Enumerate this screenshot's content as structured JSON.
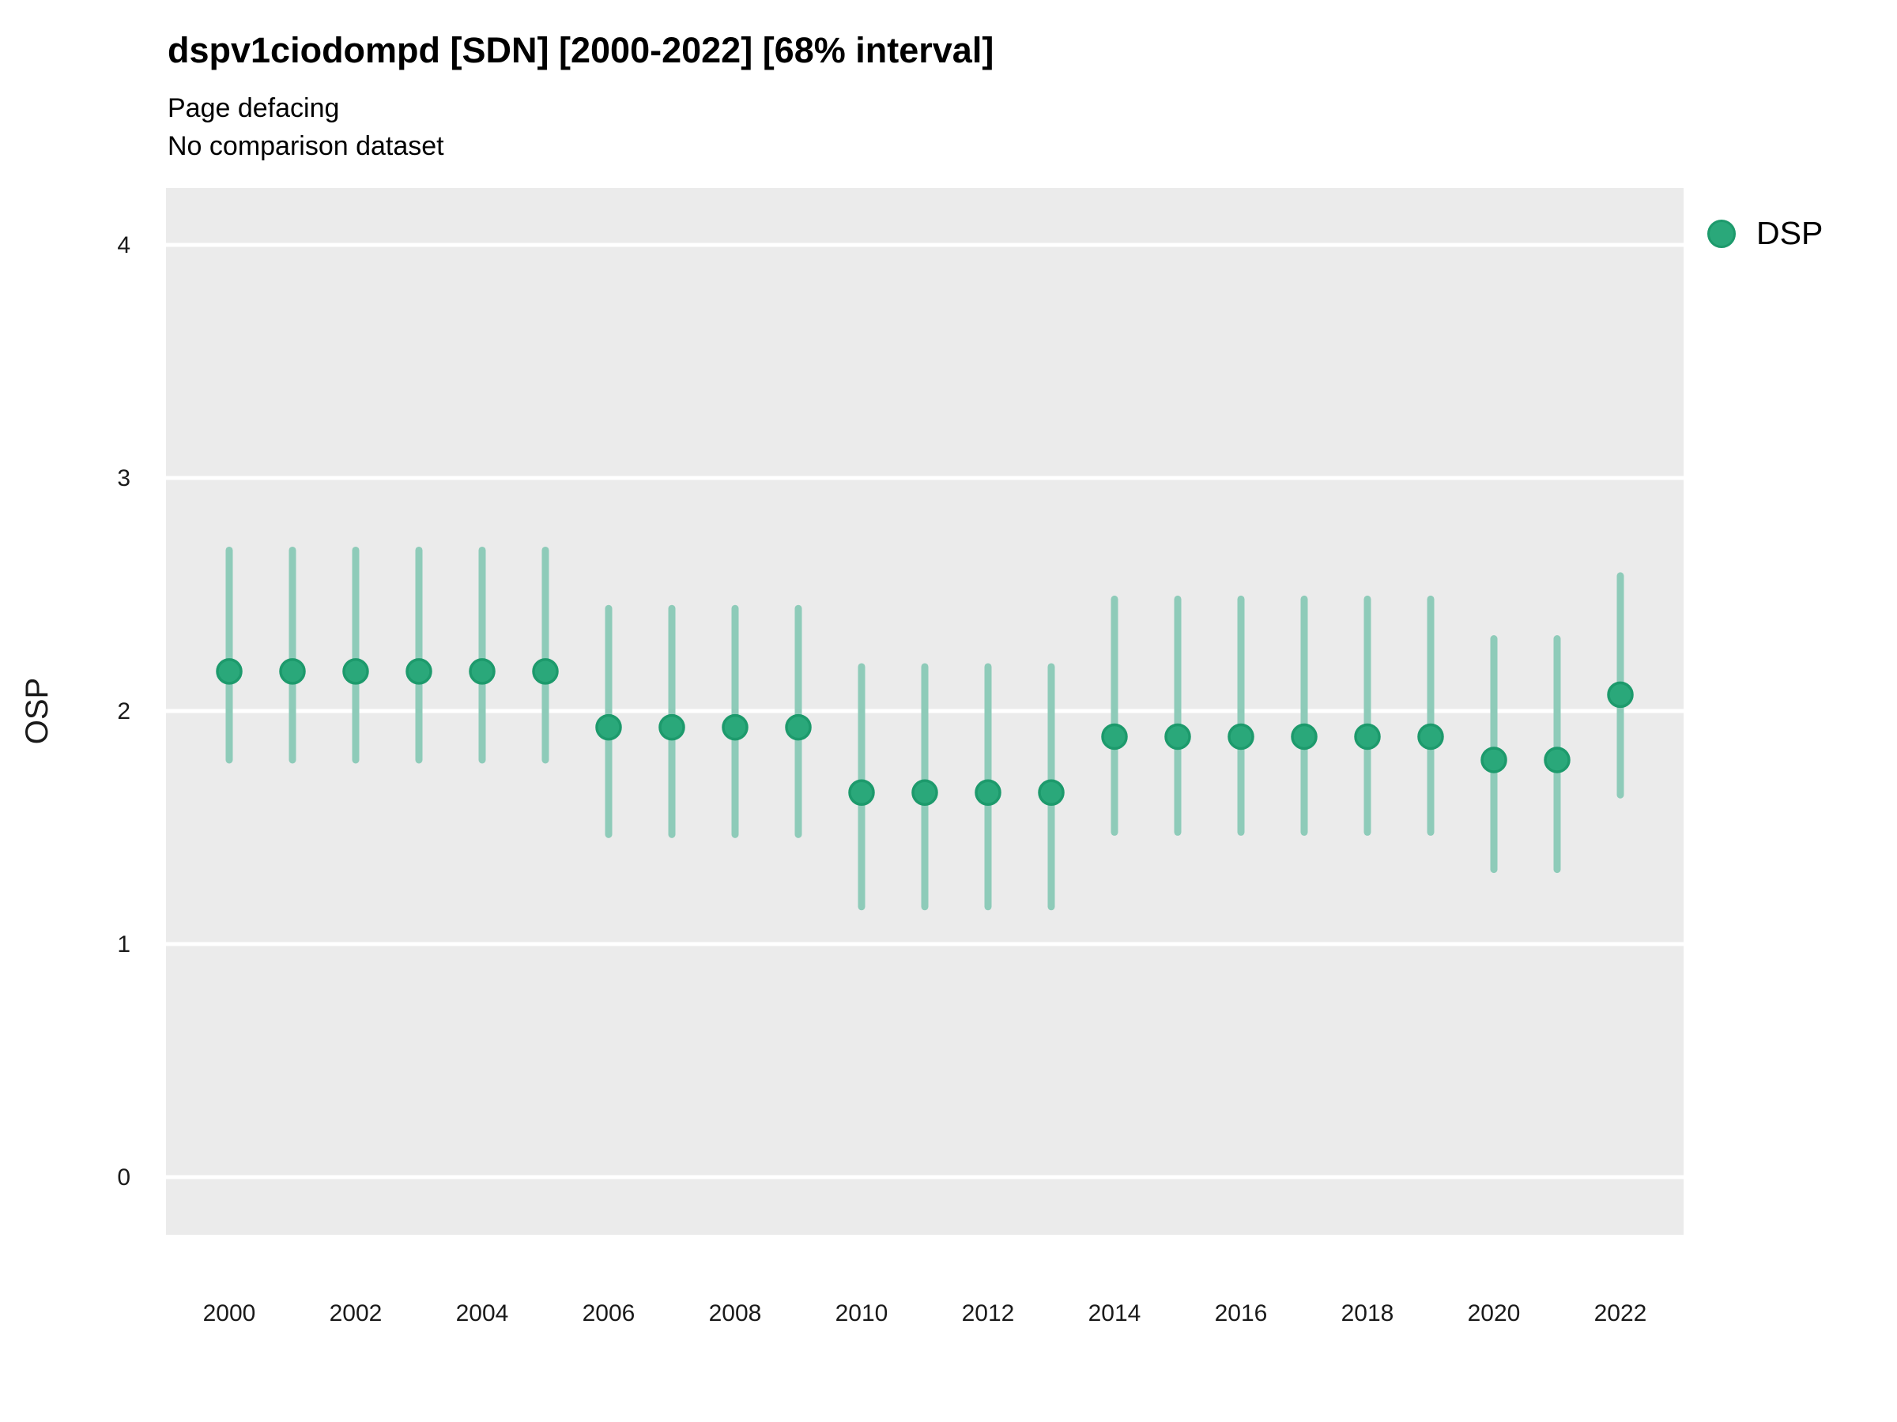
{
  "title": "dspv1ciodompd [SDN] [2000-2022] [68% interval]",
  "subtitle": "Page defacing",
  "note": "No comparison dataset",
  "legend": {
    "items": [
      {
        "label": "DSP",
        "color": "#2aa87a",
        "stroke": "#1d9a6c"
      }
    ]
  },
  "colors": {
    "panel_background": "#ebebeb",
    "gridline": "#ffffff",
    "point_fill": "#2aa87a",
    "point_stroke": "#1d9a6c",
    "interval_bar": "#8ecbb9",
    "text": "#1a1a1a"
  },
  "chart_data": {
    "type": "scatter",
    "title": "dspv1ciodompd [SDN] [2000-2022] [68% interval]",
    "subtitle": "Page defacing",
    "note": "No comparison dataset",
    "interval": "68%",
    "xlabel": "",
    "ylabel": "OSP",
    "legend_position": "right-top",
    "grid": "horizontal-major-only",
    "ylim": [
      -0.25,
      4.25
    ],
    "xlim": [
      1999,
      2023
    ],
    "yticks": [
      0,
      1,
      2,
      3,
      4
    ],
    "xticks": [
      2000,
      2002,
      2004,
      2006,
      2008,
      2010,
      2012,
      2014,
      2016,
      2018,
      2020,
      2022
    ],
    "series": [
      {
        "name": "DSP",
        "x": [
          2000,
          2001,
          2002,
          2003,
          2004,
          2005,
          2006,
          2007,
          2008,
          2009,
          2010,
          2011,
          2012,
          2013,
          2014,
          2015,
          2016,
          2017,
          2018,
          2019,
          2020,
          2021,
          2022
        ],
        "y": [
          2.17,
          2.17,
          2.17,
          2.17,
          2.17,
          2.17,
          1.93,
          1.93,
          1.93,
          1.93,
          1.65,
          1.65,
          1.65,
          1.65,
          1.89,
          1.89,
          1.89,
          1.89,
          1.89,
          1.89,
          1.79,
          1.79,
          2.07
        ],
        "low": [
          1.79,
          1.79,
          1.79,
          1.79,
          1.79,
          1.79,
          1.47,
          1.47,
          1.47,
          1.47,
          1.16,
          1.16,
          1.16,
          1.16,
          1.48,
          1.48,
          1.48,
          1.48,
          1.48,
          1.48,
          1.32,
          1.32,
          1.64
        ],
        "high": [
          2.69,
          2.69,
          2.69,
          2.69,
          2.69,
          2.69,
          2.44,
          2.44,
          2.44,
          2.44,
          2.19,
          2.19,
          2.19,
          2.19,
          2.48,
          2.48,
          2.48,
          2.48,
          2.48,
          2.48,
          2.31,
          2.31,
          2.58
        ]
      }
    ]
  }
}
